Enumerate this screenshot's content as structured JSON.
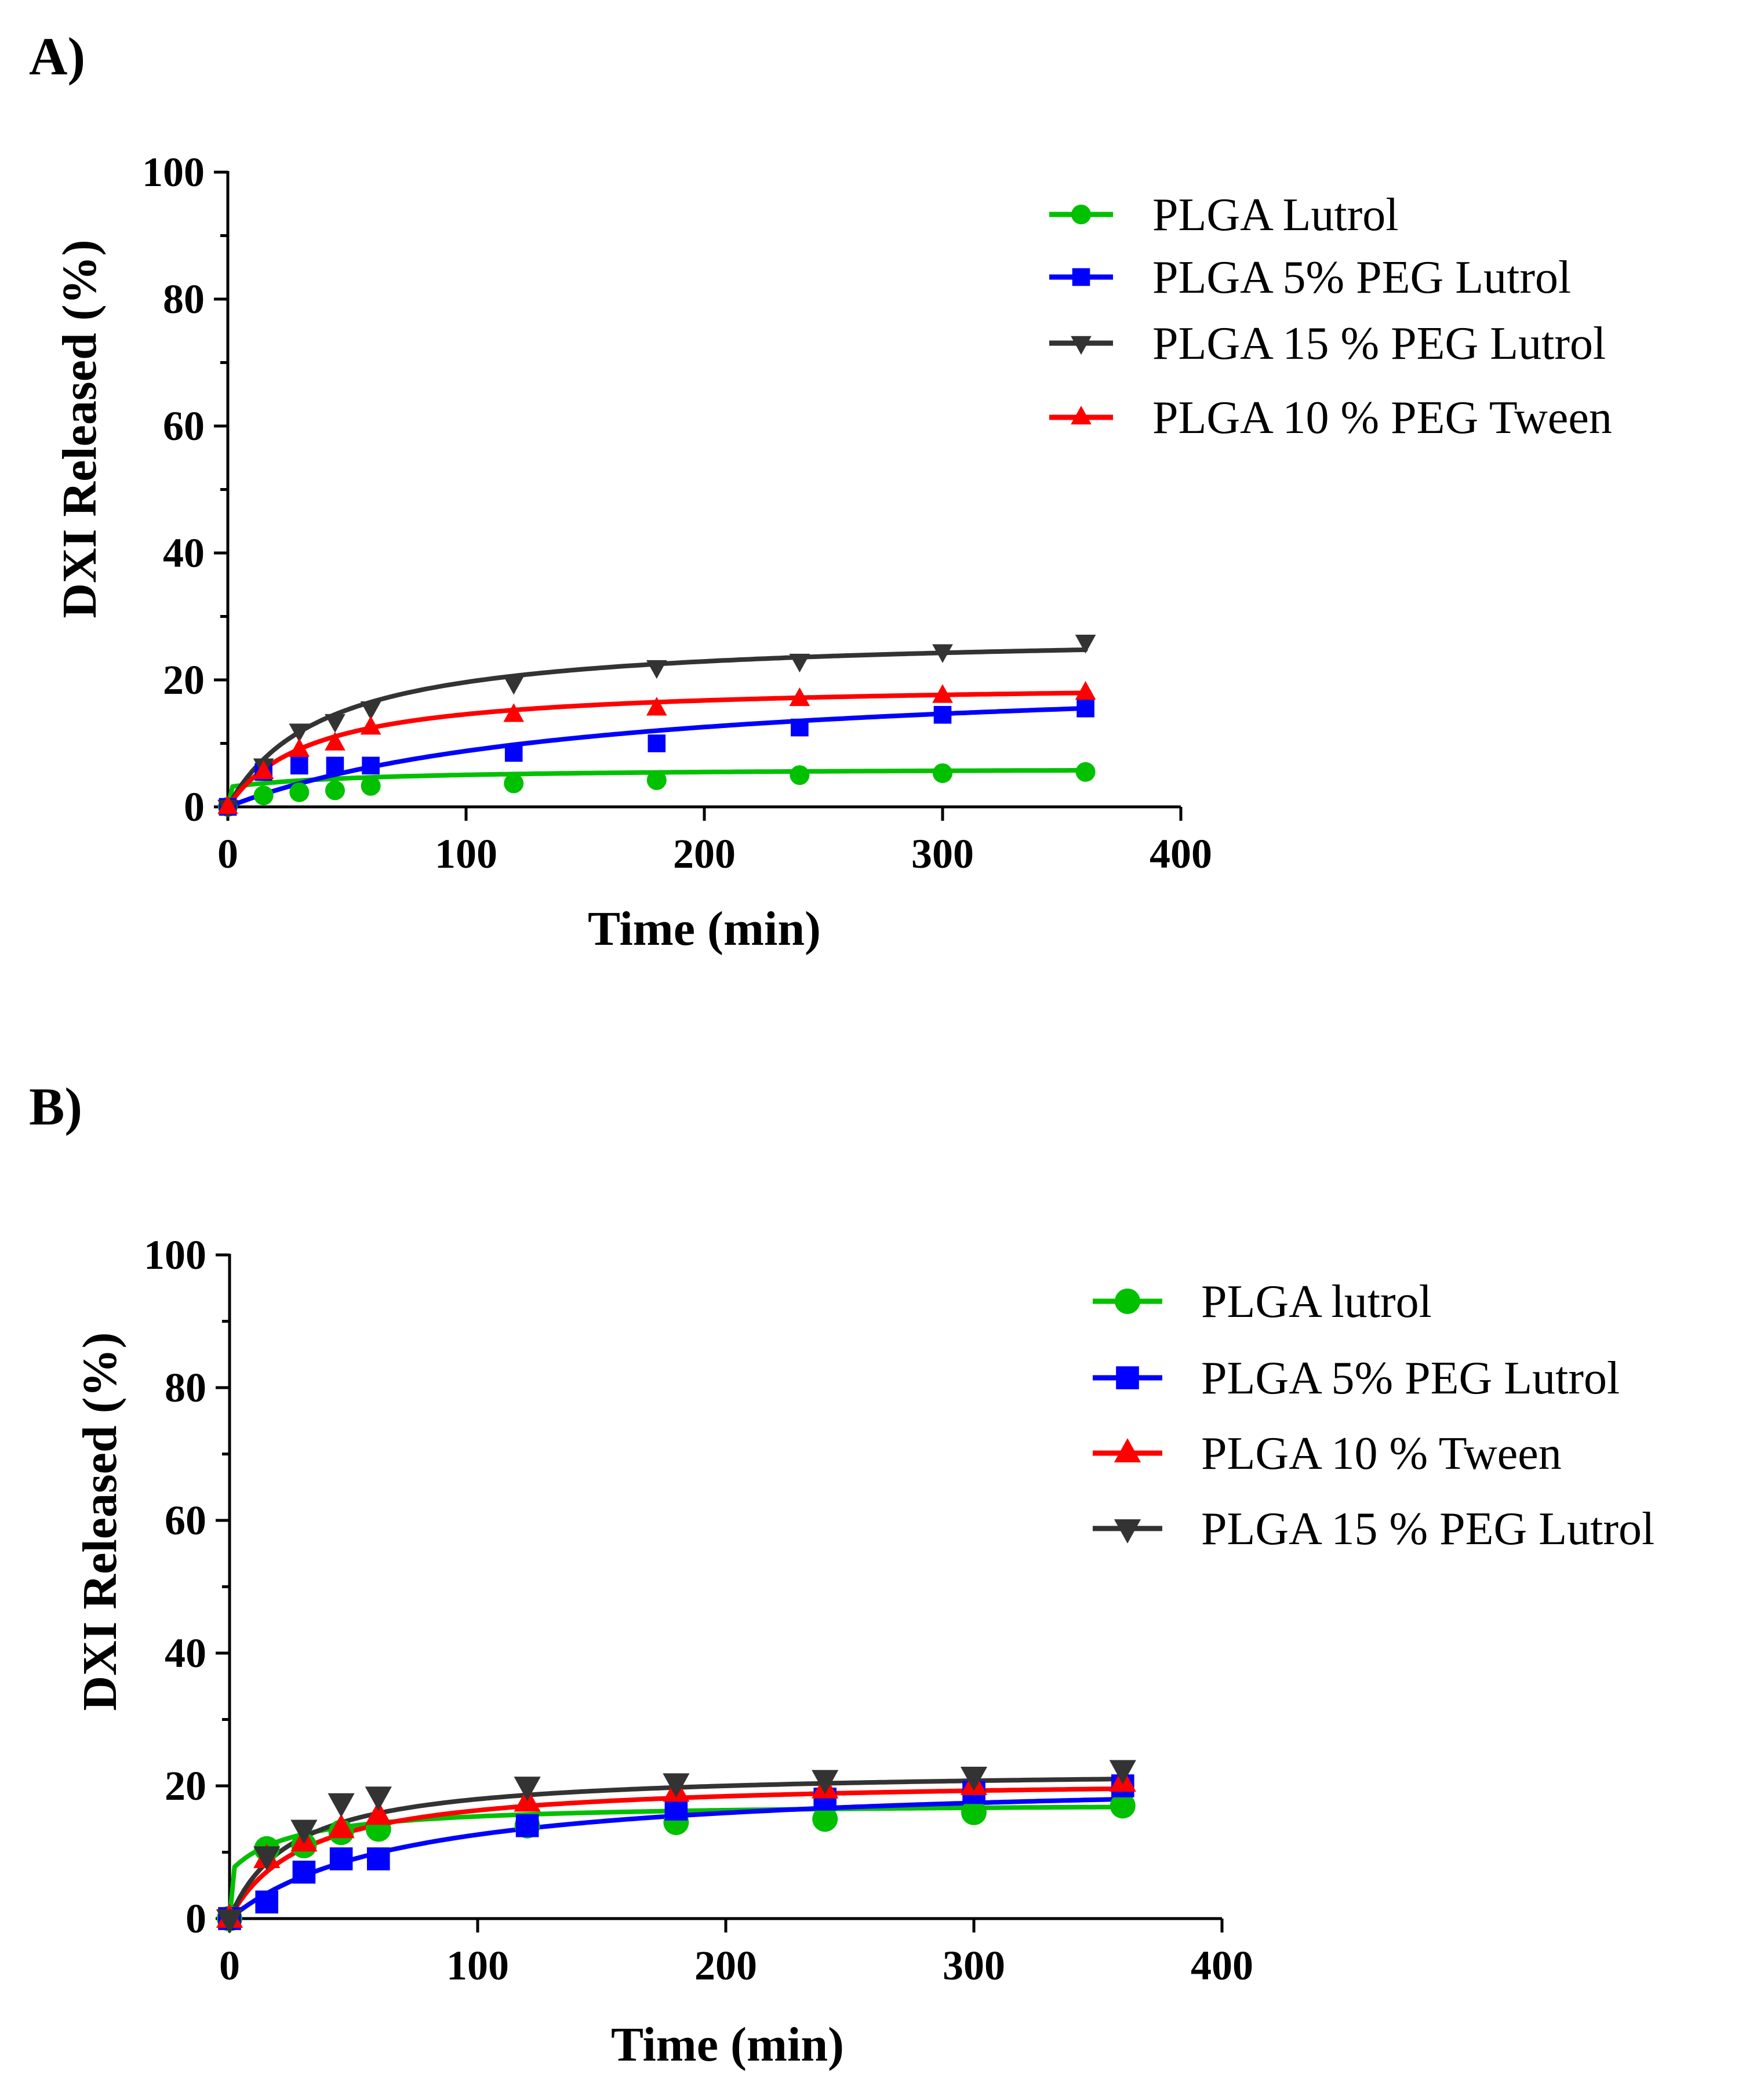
{
  "chart_data": [
    {
      "panel_label": "A)",
      "type": "scatter",
      "xlabel": "Time (min)",
      "ylabel": "DXI Released (%)",
      "xlim": [
        0,
        400
      ],
      "ylim": [
        0,
        100
      ],
      "xticks": [
        0,
        100,
        200,
        300,
        400
      ],
      "yticks": [
        0,
        20,
        40,
        60,
        80,
        100
      ],
      "x_tick_labels": [
        "0",
        "100",
        "200",
        "300",
        "400"
      ],
      "y_tick_labels": [
        "0",
        "20",
        "40",
        "60",
        "80",
        "100"
      ],
      "legend_position": "top-right",
      "grid": false,
      "series": [
        {
          "name": "PLGA Lutrol",
          "color": "#00c000",
          "marker": "circle",
          "x": [
            0,
            15,
            30,
            45,
            60,
            120,
            180,
            240,
            300,
            360
          ],
          "y": [
            0,
            1.8,
            2.3,
            2.6,
            3.3,
            3.7,
            4.2,
            5.0,
            5.3,
            5.5
          ],
          "fit": {
            "ymax": 6.2,
            "k": 60,
            "f0": 0.5
          }
        },
        {
          "name": "PLGA 5% PEG Lutrol",
          "color": "#0000ff",
          "marker": "square",
          "x": [
            0,
            15,
            30,
            45,
            60,
            120,
            180,
            240,
            300,
            360
          ],
          "y": [
            0,
            5.5,
            6.5,
            6.5,
            6.5,
            8.5,
            10.0,
            12.5,
            14.5,
            15.5
          ],
          "fit": {
            "ymax": 22,
            "k": 150,
            "f0": 0
          }
        },
        {
          "name": "PLGA 15 % PEG Lutrol",
          "color": "#333333",
          "marker": "triangle-down",
          "x": [
            0,
            15,
            30,
            45,
            60,
            120,
            180,
            240,
            300,
            360
          ],
          "y": [
            0,
            6.5,
            12.0,
            13.5,
            15.5,
            19.5,
            22.0,
            23.0,
            24.5,
            26.0
          ],
          "fit": {
            "ymax": 27.5,
            "k": 40,
            "f0": 0
          }
        },
        {
          "name": "PLGA 10 % PEG Tween",
          "color": "#ff0000",
          "marker": "triangle-up",
          "x": [
            0,
            15,
            30,
            45,
            60,
            120,
            180,
            240,
            300,
            360
          ],
          "y": [
            0,
            5.5,
            9.0,
            10.0,
            12.5,
            14.5,
            15.5,
            17.0,
            17.5,
            18.0
          ],
          "fit": {
            "ymax": 19.7,
            "k": 35,
            "f0": 0
          }
        }
      ]
    },
    {
      "panel_label": "B)",
      "type": "scatter",
      "xlabel": "Time (min)",
      "ylabel": "DXI Released (%)",
      "xlim": [
        0,
        400
      ],
      "ylim": [
        0,
        100
      ],
      "xticks": [
        0,
        100,
        200,
        300,
        400
      ],
      "yticks": [
        0,
        20,
        40,
        60,
        80,
        100
      ],
      "x_tick_labels": [
        "0",
        "100",
        "200",
        "300",
        "400"
      ],
      "y_tick_labels": [
        "0",
        "20",
        "40",
        "60",
        "80",
        "100"
      ],
      "legend_position": "top-right",
      "grid": false,
      "series": [
        {
          "name": "PLGA lutrol",
          "color": "#00c000",
          "marker": "circle",
          "x": [
            0,
            15,
            30,
            45,
            60,
            120,
            180,
            240,
            300,
            360
          ],
          "y": [
            0,
            10.5,
            11.0,
            13.0,
            13.5,
            14.0,
            14.5,
            15.0,
            16.0,
            17.0
          ],
          "fit": {
            "ymax": 17.5,
            "k": 25,
            "f0": 0.4
          }
        },
        {
          "name": "PLGA 5% PEG Lutrol",
          "color": "#0000ff",
          "marker": "square",
          "x": [
            0,
            15,
            30,
            45,
            60,
            120,
            180,
            240,
            300,
            360
          ],
          "y": [
            0,
            2.5,
            7.0,
            9.0,
            9.0,
            14.0,
            16.5,
            18.0,
            19.0,
            20.0
          ],
          "fit": {
            "ymax": 21.5,
            "k": 70,
            "f0": 0
          }
        },
        {
          "name": "PLGA 10 % Tween",
          "color": "#ff0000",
          "marker": "triangle-up",
          "x": [
            0,
            15,
            30,
            45,
            60,
            120,
            180,
            240,
            300,
            360
          ],
          "y": [
            0,
            9.0,
            11.5,
            13.5,
            15.5,
            17.5,
            19.0,
            19.5,
            20.0,
            20.5
          ],
          "fit": {
            "ymax": 21.2,
            "k": 30,
            "f0": 0
          }
        },
        {
          "name": "PLGA 15 % PEG Lutrol",
          "color": "#333333",
          "marker": "triangle-down",
          "x": [
            0,
            15,
            30,
            45,
            60,
            120,
            180,
            240,
            300,
            360
          ],
          "y": [
            0,
            9.5,
            13.5,
            17.5,
            18.5,
            20.0,
            20.5,
            21.0,
            21.5,
            22.5
          ],
          "fit": {
            "ymax": 22.5,
            "k": 25,
            "f0": 0
          }
        }
      ]
    }
  ]
}
